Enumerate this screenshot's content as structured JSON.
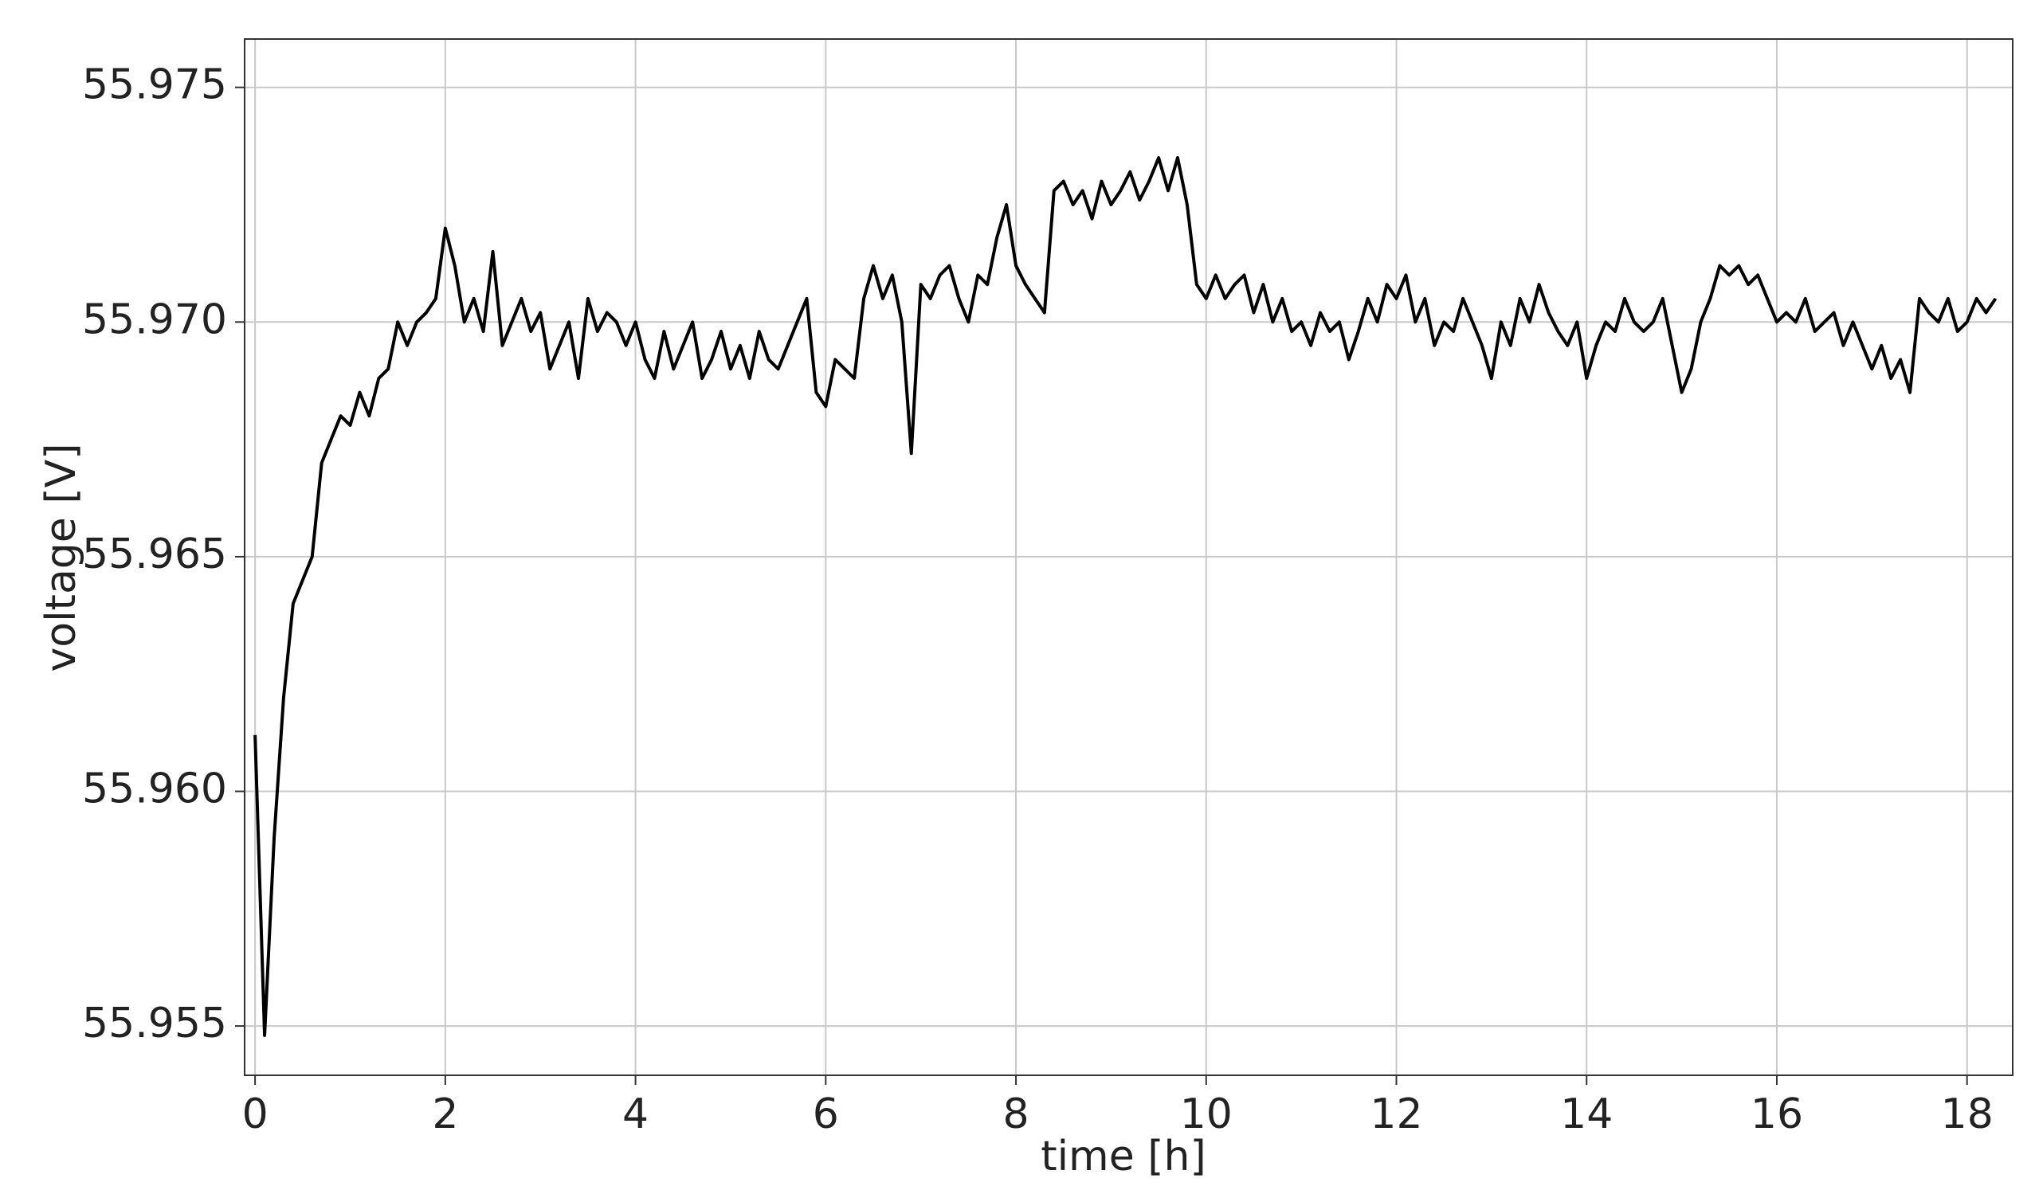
{
  "chart_data": {
    "type": "line",
    "xlabel": "time [h]",
    "ylabel": "voltage [V]",
    "x": [
      0,
      0.1,
      0.2,
      0.3,
      0.4,
      0.5,
      0.6,
      0.7,
      0.8,
      0.9,
      1,
      1.1,
      1.2,
      1.3,
      1.4,
      1.5,
      1.6,
      1.7,
      1.8,
      1.9,
      2,
      2.1,
      2.2,
      2.3,
      2.4,
      2.5,
      2.6,
      2.7,
      2.8,
      2.9,
      3,
      3.1,
      3.2,
      3.3,
      3.4,
      3.5,
      3.6,
      3.7,
      3.8,
      3.9,
      4,
      4.1,
      4.2,
      4.3,
      4.4,
      4.5,
      4.6,
      4.7,
      4.8,
      4.9,
      5,
      5.1,
      5.2,
      5.3,
      5.4,
      5.5,
      5.6,
      5.7,
      5.8,
      5.9,
      6,
      6.1,
      6.2,
      6.3,
      6.4,
      6.5,
      6.6,
      6.7,
      6.8,
      6.9,
      7,
      7.1,
      7.2,
      7.3,
      7.4,
      7.5,
      7.6,
      7.7,
      7.8,
      7.9,
      8,
      8.1,
      8.2,
      8.3,
      8.4,
      8.5,
      8.6,
      8.7,
      8.8,
      8.9,
      9,
      9.1,
      9.2,
      9.3,
      9.4,
      9.5,
      9.6,
      9.7,
      9.8,
      9.9,
      10,
      10.1,
      10.2,
      10.3,
      10.4,
      10.5,
      10.6,
      10.7,
      10.8,
      10.9,
      11,
      11.1,
      11.2,
      11.3,
      11.4,
      11.5,
      11.6,
      11.7,
      11.8,
      11.9,
      12,
      12.1,
      12.2,
      12.3,
      12.4,
      12.5,
      12.6,
      12.7,
      12.8,
      12.9,
      13,
      13.1,
      13.2,
      13.3,
      13.4,
      13.5,
      13.6,
      13.7,
      13.8,
      13.9,
      14,
      14.1,
      14.2,
      14.3,
      14.4,
      14.5,
      14.6,
      14.7,
      14.8,
      14.9,
      15,
      15.1,
      15.2,
      15.3,
      15.4,
      15.5,
      15.6,
      15.7,
      15.8,
      15.9,
      16,
      16.1,
      16.2,
      16.3,
      16.4,
      16.5,
      16.6,
      16.7,
      16.8,
      16.9,
      17,
      17.1,
      17.2,
      17.3,
      17.4,
      17.5,
      17.6,
      17.7,
      17.8,
      17.9,
      18,
      18.1,
      18.2,
      18.3
    ],
    "series": [
      {
        "color": "#000000",
        "values": [
          55.9612,
          55.9548,
          55.959,
          55.962,
          55.964,
          55.9645,
          55.965,
          55.967,
          55.9675,
          55.968,
          55.9678,
          55.9685,
          55.968,
          55.9688,
          55.969,
          55.97,
          55.9695,
          55.97,
          55.9702,
          55.9705,
          55.972,
          55.9712,
          55.97,
          55.9705,
          55.9698,
          55.9715,
          55.9695,
          55.97,
          55.9705,
          55.9698,
          55.9702,
          55.969,
          55.9695,
          55.97,
          55.9688,
          55.9705,
          55.9698,
          55.9702,
          55.97,
          55.9695,
          55.97,
          55.9692,
          55.9688,
          55.9698,
          55.969,
          55.9695,
          55.97,
          55.9688,
          55.9692,
          55.9698,
          55.969,
          55.9695,
          55.9688,
          55.9698,
          55.9692,
          55.969,
          55.9695,
          55.97,
          55.9705,
          55.9685,
          55.9682,
          55.9692,
          55.969,
          55.9688,
          55.9705,
          55.9712,
          55.9705,
          55.971,
          55.97,
          55.9672,
          55.9708,
          55.9705,
          55.971,
          55.9712,
          55.9705,
          55.97,
          55.971,
          55.9708,
          55.9718,
          55.9725,
          55.9712,
          55.9708,
          55.9705,
          55.9702,
          55.9728,
          55.973,
          55.9725,
          55.9728,
          55.9722,
          55.973,
          55.9725,
          55.9728,
          55.9732,
          55.9726,
          55.973,
          55.9735,
          55.9728,
          55.9735,
          55.9725,
          55.9708,
          55.9705,
          55.971,
          55.9705,
          55.9708,
          55.971,
          55.9702,
          55.9708,
          55.97,
          55.9705,
          55.9698,
          55.97,
          55.9695,
          55.9702,
          55.9698,
          55.97,
          55.9692,
          55.9698,
          55.9705,
          55.97,
          55.9708,
          55.9705,
          55.971,
          55.97,
          55.9705,
          55.9695,
          55.97,
          55.9698,
          55.9705,
          55.97,
          55.9695,
          55.9688,
          55.97,
          55.9695,
          55.9705,
          55.97,
          55.9708,
          55.9702,
          55.9698,
          55.9695,
          55.97,
          55.9688,
          55.9695,
          55.97,
          55.9698,
          55.9705,
          55.97,
          55.9698,
          55.97,
          55.9705,
          55.9695,
          55.9685,
          55.969,
          55.97,
          55.9705,
          55.9712,
          55.971,
          55.9712,
          55.9708,
          55.971,
          55.9705,
          55.97,
          55.9702,
          55.97,
          55.9705,
          55.9698,
          55.97,
          55.9702,
          55.9695,
          55.97,
          55.9695,
          55.969,
          55.9695,
          55.9688,
          55.9692,
          55.9685,
          55.9705,
          55.9702,
          55.97,
          55.9705,
          55.9698,
          55.97,
          55.9705,
          55.9702,
          55.9705
        ]
      }
    ],
    "xlim": [
      -0.11,
      18.48
    ],
    "xticks": [
      0,
      2,
      4,
      6,
      8,
      10,
      12,
      14,
      16,
      18
    ],
    "ylim": [
      55.95395,
      55.97603
    ],
    "yticks": [
      55.955,
      {
        "value": 55.96,
        "label": "55.960"
      },
      55.965,
      {
        "value": 55.97,
        "label": "55.970"
      },
      55.975
    ],
    "grid": true
  }
}
